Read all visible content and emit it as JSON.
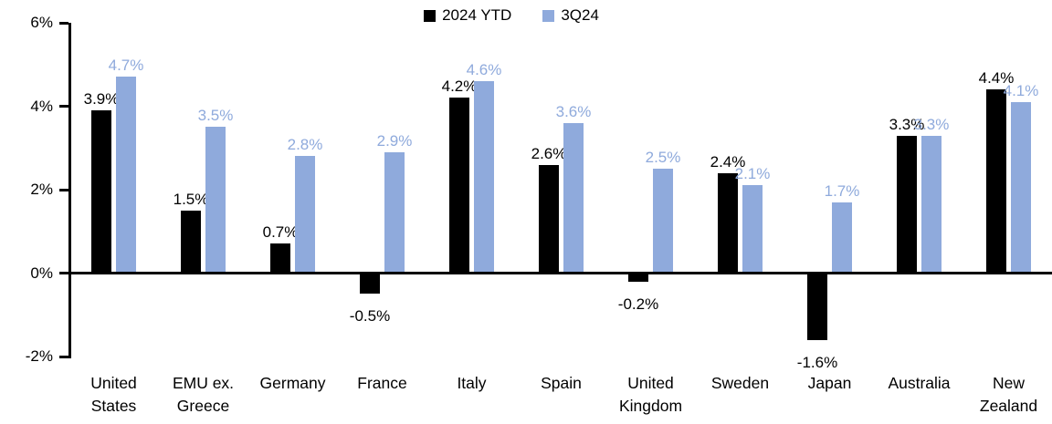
{
  "legend": {
    "items": [
      {
        "label": "2024 YTD",
        "color": "#000000"
      },
      {
        "label": "3Q24",
        "color": "#8FAADC"
      }
    ]
  },
  "colors": {
    "series_2024ytd": "#000000",
    "series_3q24": "#8FAADC",
    "axis": "#000000",
    "background": "#FFFFFF"
  },
  "chart_data": {
    "type": "bar",
    "title": "",
    "xlabel": "",
    "ylabel": "",
    "categories": [
      "United States",
      "EMU ex. Greece",
      "Germany",
      "France",
      "Italy",
      "Spain",
      "United Kingdom",
      "Sweden",
      "Japan",
      "Australia",
      "New Zealand"
    ],
    "series": [
      {
        "name": "2024 YTD",
        "color": "#000000",
        "values": [
          3.9,
          1.5,
          0.7,
          -0.5,
          4.2,
          2.6,
          -0.2,
          2.4,
          -1.6,
          3.3,
          4.4
        ]
      },
      {
        "name": "3Q24",
        "color": "#8FAADC",
        "values": [
          4.7,
          3.5,
          2.8,
          2.9,
          4.6,
          3.6,
          2.5,
          2.1,
          1.7,
          3.3,
          4.1
        ]
      }
    ],
    "value_label_suffix": "%",
    "value_label_decimals": 1,
    "y_ticks": [
      6,
      4,
      2,
      0,
      -2
    ],
    "y_tick_labels": [
      "6%",
      "4%",
      "2%",
      "0%",
      "-2%"
    ],
    "ylim": [
      -2,
      6
    ],
    "grid": false,
    "legend_position": "top-center"
  }
}
